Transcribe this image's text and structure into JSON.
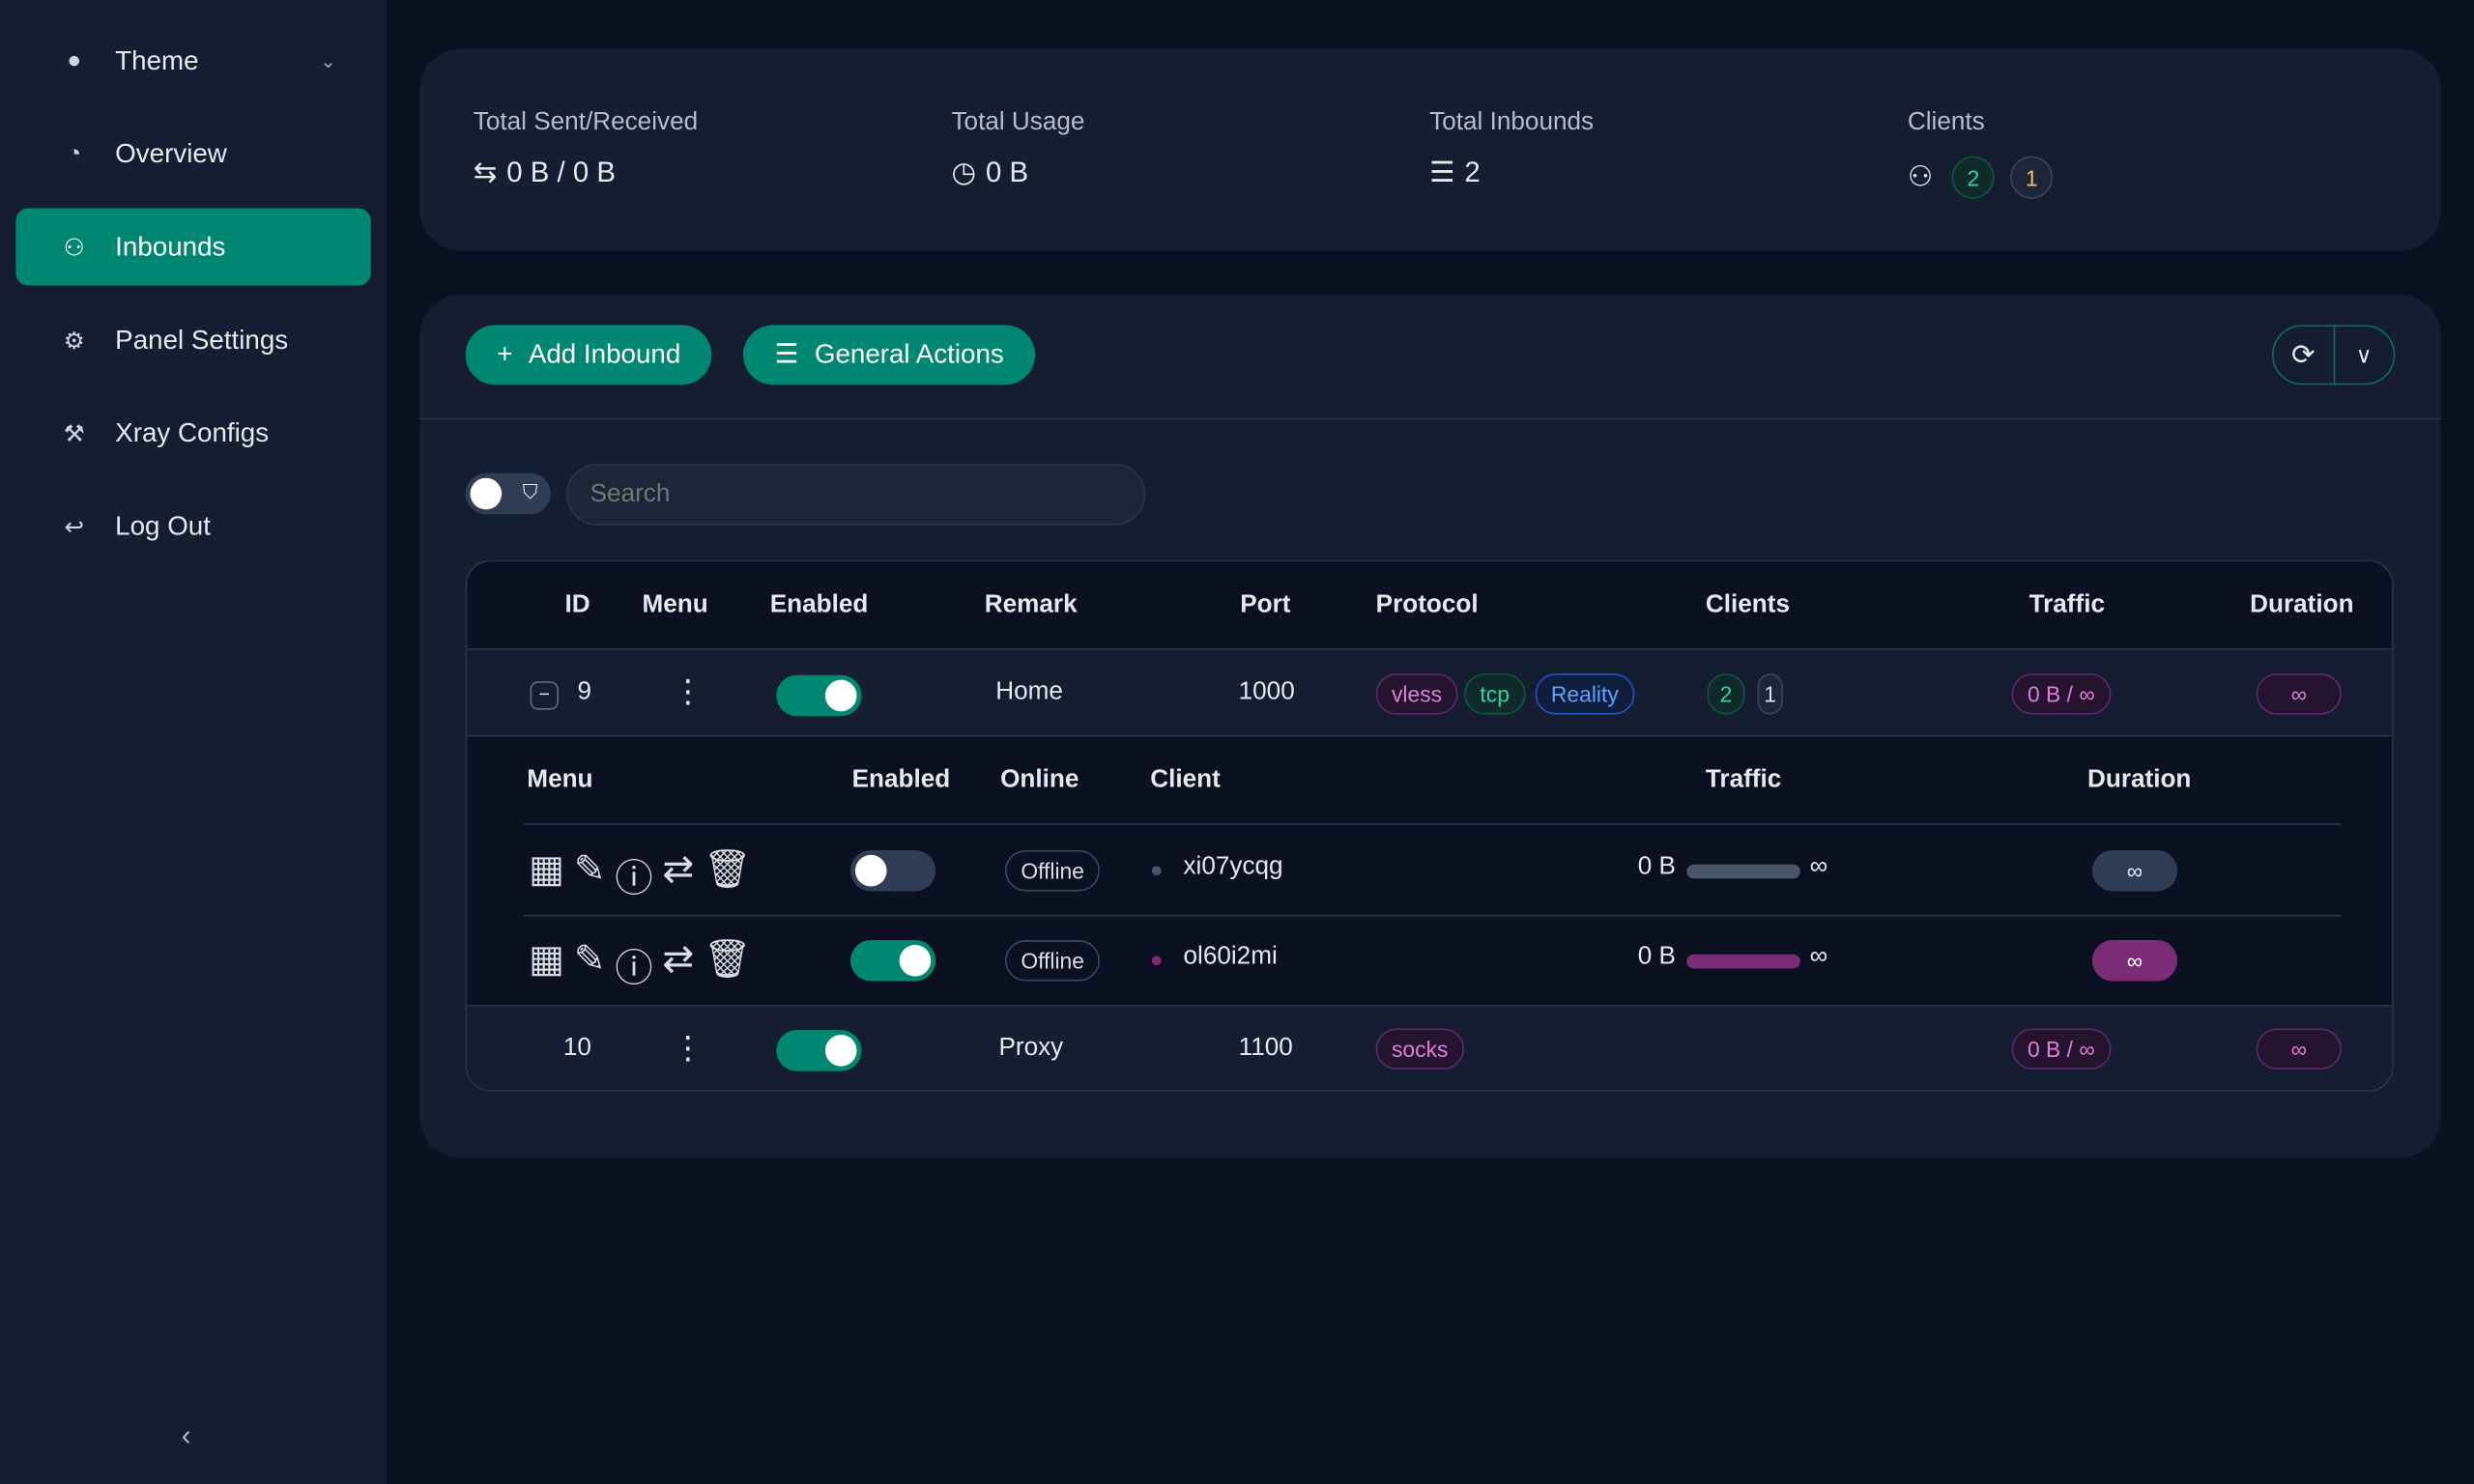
{
  "sidebar": {
    "items": [
      {
        "label": "Theme",
        "icon": "bulb-icon"
      },
      {
        "label": "Overview",
        "icon": "dashboard-icon"
      },
      {
        "label": "Inbounds",
        "icon": "user-icon",
        "active": true
      },
      {
        "label": "Panel Settings",
        "icon": "gear-icon"
      },
      {
        "label": "Xray Configs",
        "icon": "tool-icon"
      },
      {
        "label": "Log Out",
        "icon": "logout-icon"
      }
    ]
  },
  "stats": {
    "sent_received": {
      "label": "Total Sent/Received",
      "value": "0 B / 0 B"
    },
    "usage": {
      "label": "Total Usage",
      "value": "0 B"
    },
    "inbounds": {
      "label": "Total Inbounds",
      "value": "2"
    },
    "clients": {
      "label": "Clients",
      "online": "2",
      "offline": "1"
    }
  },
  "toolbar": {
    "add_inbound": "Add Inbound",
    "general_actions": "General Actions"
  },
  "search": {
    "placeholder": "Search"
  },
  "table": {
    "headers": [
      "ID",
      "Menu",
      "Enabled",
      "Remark",
      "Port",
      "Protocol",
      "Clients",
      "Traffic",
      "Duration"
    ],
    "rows": [
      {
        "id": "9",
        "enabled": true,
        "remark": "Home",
        "port": "1000",
        "protocol": [
          "vless",
          "tcp",
          "Reality"
        ],
        "clients": [
          "2",
          "1"
        ],
        "traffic": "0 B / ∞",
        "duration": "∞"
      },
      {
        "id": "10",
        "enabled": true,
        "remark": "Proxy",
        "port": "1100",
        "protocol": [
          "socks"
        ],
        "traffic": "0 B / ∞",
        "duration": "∞"
      }
    ],
    "client_headers": [
      "Menu",
      "Enabled",
      "Online",
      "Client",
      "Traffic",
      "Duration"
    ],
    "clients": [
      {
        "enabled": false,
        "online": "Offline",
        "name": "xi07ycqg",
        "traffic": "0 B",
        "limit": "∞",
        "duration": "∞"
      },
      {
        "enabled": true,
        "online": "Offline",
        "name": "ol60i2mi",
        "traffic": "0 B",
        "limit": "∞",
        "duration": "∞"
      }
    ]
  },
  "colors": {
    "accent": "#008771",
    "background": "#0b1120",
    "card": "#151e30",
    "purple": "#7a2d74"
  }
}
